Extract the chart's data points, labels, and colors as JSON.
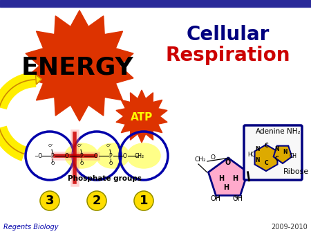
{
  "bg_color": "#ffffff",
  "title_cellular": "Cellular",
  "title_respiration": "Respiration",
  "energy_text": "ENERGY",
  "atp_text": "ATP",
  "phosphate_label": "Phosphate groups",
  "adenine_label": "Adenine",
  "nh2_label": "NH₂",
  "ribose_label": "Ribose",
  "footer_left": "Regents Biology",
  "footer_right": "2009-2010",
  "numbers": [
    "3",
    "2",
    "1"
  ],
  "top_bar_color": "#2a2a99",
  "cellular_color": "#000080",
  "respiration_color": "#cc0000",
  "energy_color": "#000000",
  "atp_color": "#ffff00",
  "star_big_color": "#dd3300",
  "star_small_color": "#dd3300",
  "arrow_fill": "#ffee00",
  "arrow_edge": "#cc8800",
  "circle_color": "#0000aa",
  "number_bg_color": "#ffdd00",
  "phosphate_bg_color": "#ffff88",
  "footer_color": "#0000aa",
  "footer_right_color": "#333333",
  "red_line_color": "#cc0000",
  "chem_color": "#000000",
  "ribose_fill": "#ffaacc",
  "ribose_edge": "#000080",
  "adenine_fill": "#ddaa00",
  "adenine_edge": "#000080",
  "box_edge": "#000080"
}
